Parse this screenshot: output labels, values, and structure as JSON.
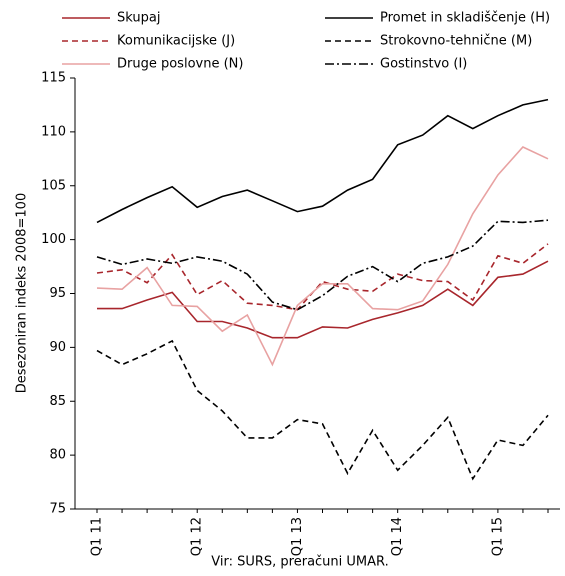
{
  "chart_data": {
    "type": "line",
    "y_label": "Desezoniran indeks 2008=100",
    "source": "Vir:  SURS, preračuni UMAR.",
    "categories": [
      "Q1 11",
      null,
      null,
      null,
      "Q1 12",
      null,
      null,
      null,
      "Q1 13",
      null,
      null,
      null,
      "Q1 14",
      null,
      null,
      null,
      "Q1 15",
      null,
      null
    ],
    "ylim": [
      75,
      115
    ],
    "yticks": [
      75,
      80,
      85,
      90,
      95,
      100,
      105,
      110,
      115
    ],
    "series": [
      {
        "name": "Skupaj",
        "color": "#a8262c",
        "dash": "solid",
        "values": [
          93.6,
          93.6,
          94.4,
          95.1,
          92.4,
          92.4,
          91.8,
          90.9,
          90.9,
          91.9,
          91.8,
          92.6,
          93.2,
          93.9,
          95.4,
          93.9,
          96.5,
          96.8,
          98.0
        ]
      },
      {
        "name": "Promet in skladiščenje (H)",
        "color": "#000000",
        "dash": "solid",
        "values": [
          101.6,
          102.8,
          103.9,
          104.9,
          103.0,
          104.0,
          104.6,
          103.6,
          102.6,
          103.1,
          104.6,
          105.6,
          108.8,
          109.7,
          111.5,
          110.3,
          111.5,
          112.5,
          113.0
        ]
      },
      {
        "name": "Komunikacijske (J)",
        "color": "#a8262c",
        "dash": "dashed",
        "values": [
          96.9,
          97.2,
          96.0,
          98.6,
          94.9,
          96.2,
          94.1,
          93.9,
          93.5,
          96.1,
          95.4,
          95.2,
          96.8,
          96.2,
          96.1,
          94.4,
          98.5,
          97.8,
          99.6
        ]
      },
      {
        "name": "Strokovno-tehnične (M)",
        "color": "#000000",
        "dash": "dashed",
        "values": [
          89.7,
          88.4,
          89.4,
          90.6,
          86.0,
          84.1,
          81.6,
          81.6,
          83.3,
          82.9,
          78.3,
          82.3,
          78.6,
          80.9,
          83.5,
          77.8,
          81.4,
          80.9,
          83.7
        ]
      },
      {
        "name": "Druge poslovne (N)",
        "color": "#e8a2a2",
        "dash": "solid",
        "values": [
          95.5,
          95.4,
          97.4,
          93.9,
          93.8,
          91.5,
          93.0,
          88.4,
          93.9,
          95.9,
          95.9,
          93.6,
          93.5,
          94.3,
          97.7,
          102.4,
          106.0,
          108.6,
          107.5
        ]
      },
      {
        "name": "Gostinstvo (I)",
        "color": "#000000",
        "dash": "dashdot",
        "values": [
          98.4,
          97.7,
          98.2,
          97.8,
          98.4,
          98.0,
          96.8,
          94.2,
          93.5,
          94.8,
          96.6,
          97.5,
          96.1,
          97.8,
          98.4,
          99.4,
          101.7,
          101.6,
          101.8
        ]
      }
    ]
  }
}
